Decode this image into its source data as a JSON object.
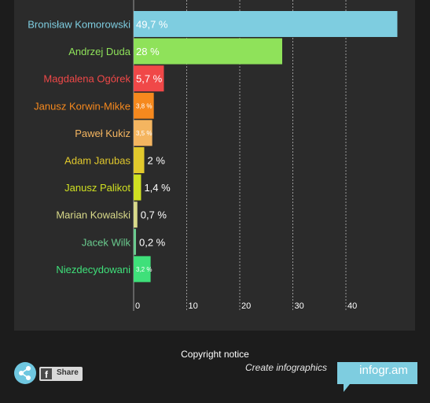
{
  "chart_data": {
    "type": "bar",
    "orientation": "horizontal",
    "categories": [
      "Bronisław Komorowski",
      "Andrzej Duda",
      "Magdalena Ogórek",
      "Janusz Korwin-Mikke",
      "Paweł Kukiz",
      "Adam Jarubas",
      "Janusz Palikot",
      "Marian Kowalski",
      "Jacek Wilk",
      "Niezdecydowani"
    ],
    "values": [
      49.7,
      28,
      5.7,
      3.8,
      3.5,
      2,
      1.4,
      0.7,
      0.2,
      3.2
    ],
    "value_labels": [
      "49,7 %",
      "28 %",
      "5,7 %",
      "3,8 %",
      "3,5 %",
      "2 %",
      "1,4 %",
      "0,7 %",
      "0,2 %",
      "3,2 %"
    ],
    "value_label_inside": [
      true,
      true,
      true,
      true,
      true,
      false,
      false,
      false,
      false,
      true
    ],
    "colors": [
      "#7ecde0",
      "#8fe25a",
      "#f04848",
      "#f6891e",
      "#f4b560",
      "#e2c92c",
      "#cfe021",
      "#d9da8a",
      "#6acb8e",
      "#3fe07a"
    ],
    "label_colors": [
      "#7ecde0",
      "#8fe25a",
      "#f04848",
      "#f6891e",
      "#f4b560",
      "#e2c92c",
      "#cfe021",
      "#d9da8a",
      "#6acb8e",
      "#3fe07a"
    ],
    "x_ticks": [
      0,
      10,
      20,
      30,
      40
    ],
    "xlim": [
      0,
      50
    ],
    "grid": true
  },
  "footer": {
    "copyright": "Copyright notice",
    "create": "Create infographics",
    "brand": "infogr.am",
    "share_label": "Share",
    "fb_glyph": "f"
  },
  "colors": {
    "brand_tab": "#7ecde0",
    "share_circle": "#6fc7e0"
  }
}
